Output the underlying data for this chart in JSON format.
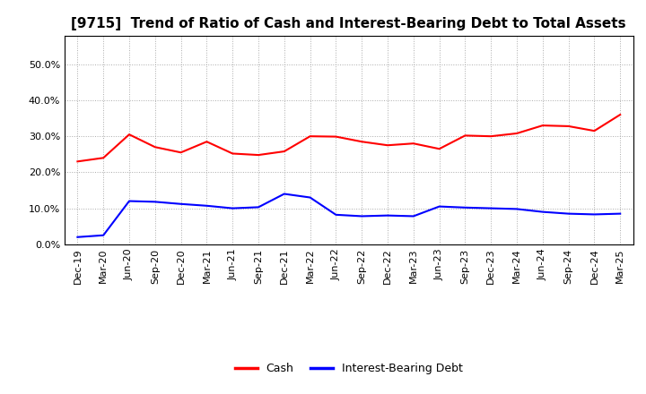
{
  "title": "[9715]  Trend of Ratio of Cash and Interest-Bearing Debt to Total Assets",
  "x_labels": [
    "Dec-19",
    "Mar-20",
    "Jun-20",
    "Sep-20",
    "Dec-20",
    "Mar-21",
    "Jun-21",
    "Sep-21",
    "Dec-21",
    "Mar-22",
    "Jun-22",
    "Sep-22",
    "Dec-22",
    "Mar-23",
    "Jun-23",
    "Sep-23",
    "Dec-23",
    "Mar-24",
    "Jun-24",
    "Sep-24",
    "Dec-24",
    "Mar-25"
  ],
  "cash": [
    0.23,
    0.24,
    0.305,
    0.27,
    0.255,
    0.285,
    0.252,
    0.248,
    0.258,
    0.3,
    0.299,
    0.285,
    0.275,
    0.28,
    0.265,
    0.302,
    0.3,
    0.308,
    0.33,
    0.328,
    0.315,
    0.36
  ],
  "interest_bearing_debt": [
    0.02,
    0.025,
    0.12,
    0.118,
    0.112,
    0.107,
    0.1,
    0.103,
    0.14,
    0.13,
    0.082,
    0.078,
    0.08,
    0.078,
    0.105,
    0.102,
    0.1,
    0.098,
    0.09,
    0.085,
    0.083,
    0.085
  ],
  "cash_color": "#ff0000",
  "debt_color": "#0000ff",
  "ylim": [
    0.0,
    0.58
  ],
  "yticks": [
    0.0,
    0.1,
    0.2,
    0.3,
    0.4,
    0.5
  ],
  "background_color": "#ffffff",
  "grid_color": "#aaaaaa",
  "legend_labels": [
    "Cash",
    "Interest-Bearing Debt"
  ],
  "title_fontsize": 11,
  "tick_fontsize": 8,
  "linewidth": 1.5
}
